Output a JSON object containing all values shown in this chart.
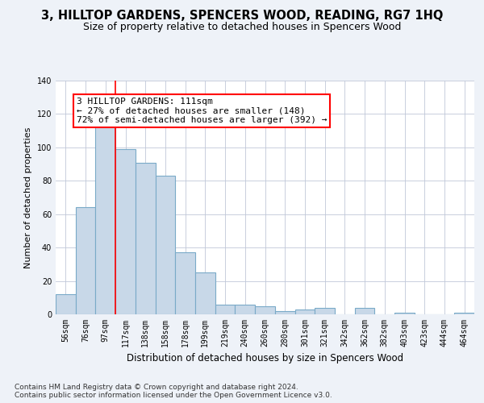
{
  "title": "3, HILLTOP GARDENS, SPENCERS WOOD, READING, RG7 1HQ",
  "subtitle": "Size of property relative to detached houses in Spencers Wood",
  "xlabel": "Distribution of detached houses by size in Spencers Wood",
  "ylabel": "Number of detached properties",
  "bar_labels": [
    "56sqm",
    "76sqm",
    "97sqm",
    "117sqm",
    "138sqm",
    "158sqm",
    "178sqm",
    "199sqm",
    "219sqm",
    "240sqm",
    "260sqm",
    "280sqm",
    "301sqm",
    "321sqm",
    "342sqm",
    "362sqm",
    "382sqm",
    "403sqm",
    "423sqm",
    "444sqm",
    "464sqm"
  ],
  "bar_values": [
    12,
    64,
    113,
    99,
    91,
    83,
    37,
    25,
    6,
    6,
    5,
    2,
    3,
    4,
    0,
    4,
    0,
    1,
    0,
    0,
    1
  ],
  "bar_color": "#c8d8e8",
  "bar_edgecolor": "#7aaac8",
  "bar_linewidth": 0.8,
  "vline_x_index": 2,
  "vline_color": "red",
  "vline_linewidth": 1.2,
  "annotation_text": "3 HILLTOP GARDENS: 111sqm\n← 27% of detached houses are smaller (148)\n72% of semi-detached houses are larger (392) →",
  "annotation_box_color": "white",
  "annotation_box_edgecolor": "red",
  "ylim": [
    0,
    140
  ],
  "yticks": [
    0,
    20,
    40,
    60,
    80,
    100,
    120,
    140
  ],
  "background_color": "#eef2f8",
  "plot_background": "#ffffff",
  "grid_color": "#c0c8d8",
  "footer": "Contains HM Land Registry data © Crown copyright and database right 2024.\nContains public sector information licensed under the Open Government Licence v3.0.",
  "title_fontsize": 10.5,
  "subtitle_fontsize": 9,
  "xlabel_fontsize": 8.5,
  "ylabel_fontsize": 8,
  "tick_fontsize": 7,
  "annotation_fontsize": 8,
  "footer_fontsize": 6.5
}
